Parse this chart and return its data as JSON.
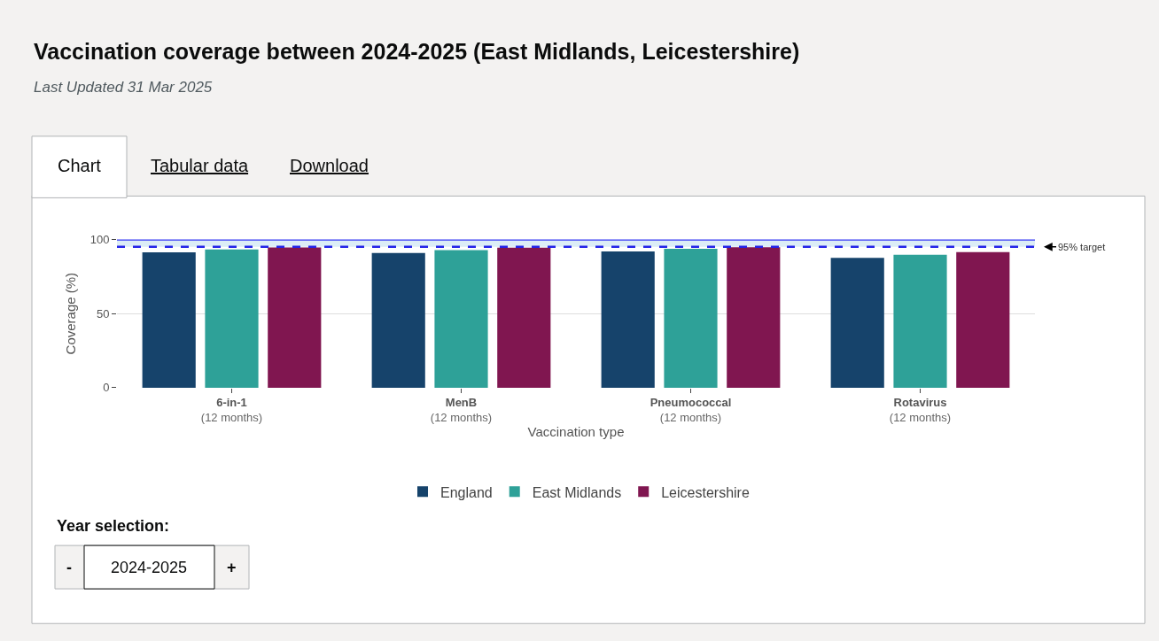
{
  "chart_data": {
    "type": "bar",
    "title": "Vaccination coverage between 2024-2025 (East Midlands, Leicestershire)",
    "subtitle": "Last Updated 31 Mar 2025",
    "xlabel": "Vaccination type",
    "ylabel": "Coverage (%)",
    "categories": [
      "6-in-1\n(12 months)",
      "MenB\n(12 months)",
      "Pneumococcal\n(12 months)",
      "Rotavirus\n(12 months)"
    ],
    "series": [
      {
        "name": "England",
        "color": "#16436b",
        "values": [
          91.3,
          90.8,
          91.9,
          87.5
        ]
      },
      {
        "name": "East Midlands",
        "color": "#2ea198",
        "values": [
          93.3,
          92.8,
          93.7,
          89.6
        ]
      },
      {
        "name": "Leicestershire",
        "color": "#801650",
        "values": [
          94.6,
          94.4,
          94.7,
          91.4
        ]
      }
    ],
    "ylim": [
      0,
      100
    ],
    "yticks": [
      0,
      50,
      100
    ],
    "grid": "y",
    "legend": "bottom",
    "bands": [
      {
        "axis": "y",
        "from": 95,
        "to": 100,
        "color": "#dcedf6"
      }
    ],
    "ref_lines": [
      {
        "axis": "y",
        "value": 100,
        "label": null,
        "color": "#3b3bf5",
        "line_style": "solid"
      },
      {
        "axis": "y",
        "value": 95,
        "label": "95% target",
        "color": "#2323e8",
        "line_style": "dashed"
      }
    ],
    "annotations": [
      "Chart",
      "Tabular data",
      "Download",
      "Year selection:",
      "-",
      "2024-2025",
      "+"
    ]
  }
}
